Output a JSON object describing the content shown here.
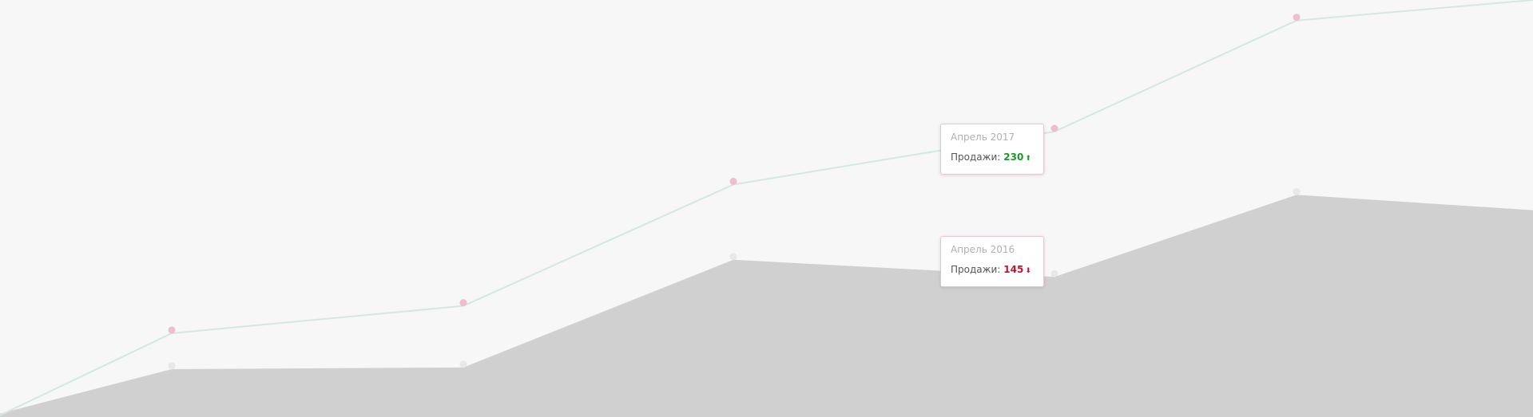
{
  "chart_data": {
    "type": "line-area",
    "categories": [
      null,
      null,
      null,
      null,
      null,
      null,
      null
    ],
    "series": [
      {
        "name": "2017",
        "kind": "line",
        "color": "#d6e7e3",
        "marker_color": "#ebbfcd",
        "values": [
          64,
          112,
          128,
          199,
          230,
          295,
          307
        ]
      },
      {
        "name": "2016",
        "kind": "area",
        "color": "#d0d0d0",
        "marker_color": "#e8e8e8",
        "values": [
          65,
          91,
          92,
          155,
          145,
          193,
          184
        ]
      }
    ],
    "ylim": [
      63,
      307
    ],
    "tooltips": [
      {
        "title": "Апрель 2017",
        "label": "Продажи:",
        "value": 230,
        "arrow": "⬆",
        "color": "#1a9a2a"
      },
      {
        "title": "Апрель 2016",
        "label": "Продажи:",
        "value": 145,
        "arrow": "⬇",
        "color": "#c8102e"
      }
    ]
  }
}
